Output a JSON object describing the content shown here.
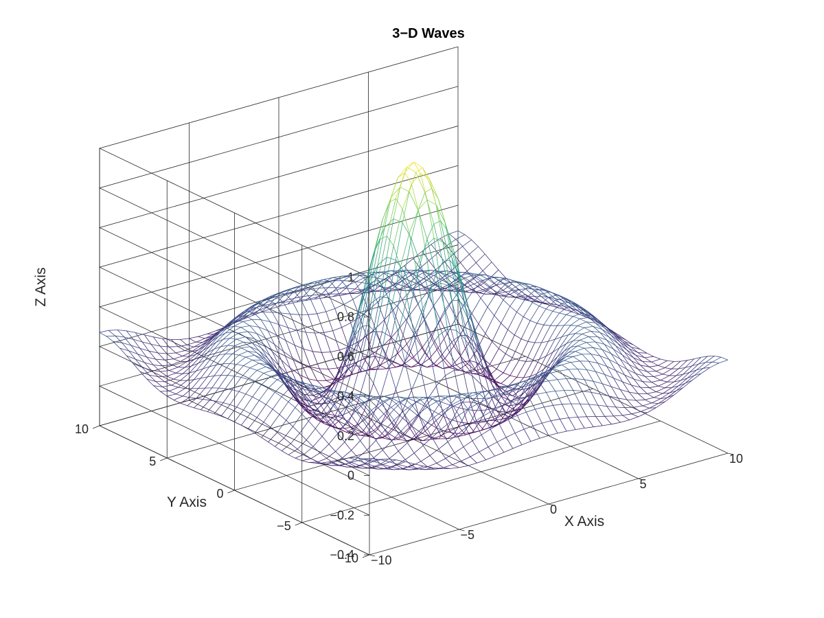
{
  "chart_data": {
    "type": "surface",
    "title": "3−D Waves",
    "xlabel": "X Axis",
    "ylabel": "Y Axis",
    "zlabel": "Z Axis",
    "xlim": [
      -10,
      10
    ],
    "ylim": [
      -10,
      10
    ],
    "zlim": [
      -0.4,
      1
    ],
    "x_ticks": [
      "−10",
      "−5",
      "0",
      "5",
      "10"
    ],
    "y_ticks": [
      "−10",
      "−5",
      "0",
      "5",
      "10"
    ],
    "z_ticks": [
      "−0.4",
      "−0.2",
      "0",
      "0.2",
      "0.4",
      "0.6",
      "0.8",
      "1"
    ],
    "function": "z = sin(r)/r, r = sqrt(x^2 + y^2)",
    "grid_points": 41,
    "grid": true,
    "colormap": [
      "#440154",
      "#3b528b",
      "#21918c",
      "#5ec962",
      "#fde725"
    ]
  }
}
